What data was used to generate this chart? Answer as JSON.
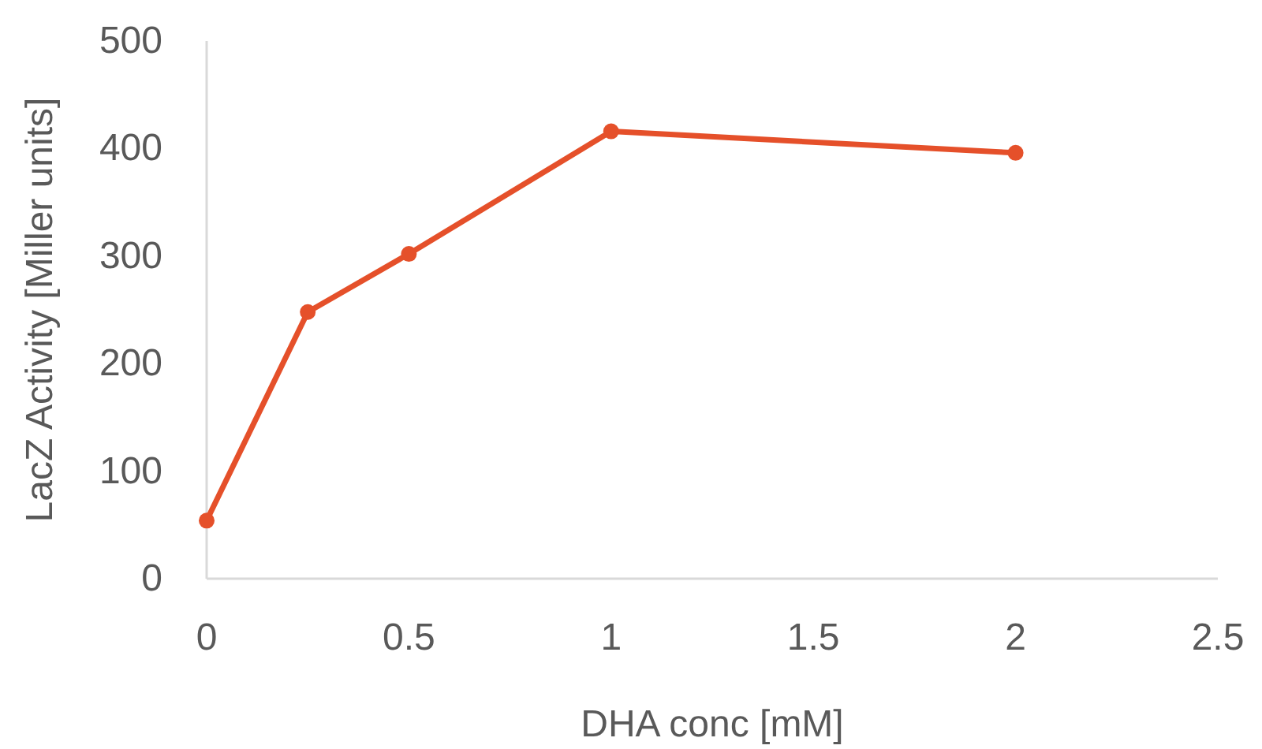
{
  "chart_data": {
    "type": "line",
    "xlabel": "DHA conc [mM]",
    "ylabel": "LacZ Activity [Miller units]",
    "x": [
      0,
      0.25,
      0.5,
      1,
      2
    ],
    "series": [
      {
        "color": "#e5502a",
        "values": [
          54,
          248,
          302,
          416,
          396
        ]
      }
    ],
    "xlim": [
      0,
      2.5
    ],
    "xticks": [
      0,
      0.5,
      1,
      1.5,
      2,
      2.5
    ],
    "ylim": [
      0,
      500
    ],
    "yticks": [
      0,
      100,
      200,
      300,
      400,
      500
    ],
    "grid": false,
    "marker": "circle",
    "line_style": "solid"
  }
}
